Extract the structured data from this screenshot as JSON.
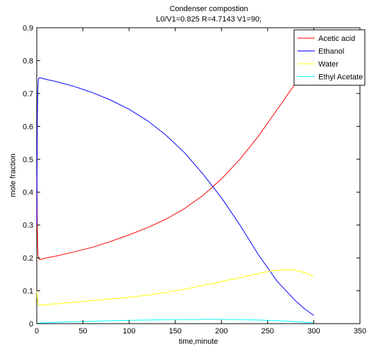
{
  "chart_data": {
    "type": "line",
    "title": "Condenser compostion",
    "subtitle": "L0/V1=0.825 R=4.7143 V1=90;",
    "xlabel": "time,minute",
    "ylabel": "mole fraction",
    "xlim": [
      0,
      350
    ],
    "ylim": [
      0,
      0.9
    ],
    "xticks": [
      0,
      50,
      100,
      150,
      200,
      250,
      300,
      350
    ],
    "yticks": [
      0,
      0.1,
      0.2,
      0.3,
      0.4,
      0.5,
      0.6,
      0.7,
      0.8,
      0.9
    ],
    "grid": false,
    "legend_position": "top-right",
    "series": [
      {
        "name": "Acetic acid",
        "color": "#ff0000",
        "x": [
          0,
          0.3,
          0.6,
          1,
          1.5,
          2,
          3,
          5,
          10,
          20,
          40,
          60,
          80,
          100,
          120,
          140,
          160,
          180,
          200,
          220,
          240,
          260,
          280,
          290,
          300
        ],
        "y": [
          0.45,
          0.4,
          0.3,
          0.23,
          0.205,
          0.198,
          0.195,
          0.196,
          0.2,
          0.205,
          0.218,
          0.232,
          0.25,
          0.27,
          0.292,
          0.318,
          0.35,
          0.39,
          0.44,
          0.5,
          0.57,
          0.65,
          0.73,
          0.77,
          0.8
        ]
      },
      {
        "name": "Ethanol",
        "color": "#0000ff",
        "x": [
          0,
          0.3,
          0.6,
          1,
          1.5,
          2,
          3,
          5,
          10,
          20,
          40,
          60,
          80,
          100,
          120,
          140,
          160,
          180,
          200,
          220,
          240,
          260,
          280,
          290,
          300
        ],
        "y": [
          0.3,
          0.45,
          0.62,
          0.7,
          0.735,
          0.745,
          0.748,
          0.747,
          0.743,
          0.737,
          0.722,
          0.703,
          0.68,
          0.652,
          0.617,
          0.573,
          0.52,
          0.455,
          0.383,
          0.3,
          0.21,
          0.13,
          0.07,
          0.045,
          0.025
        ]
      },
      {
        "name": "Water",
        "color": "#ffff00",
        "x": [
          0,
          0.5,
          1,
          2,
          3,
          5,
          10,
          20,
          40,
          60,
          80,
          100,
          120,
          140,
          160,
          180,
          200,
          220,
          240,
          250,
          260,
          270,
          280,
          290,
          300
        ],
        "y": [
          0.1,
          0.08,
          0.065,
          0.058,
          0.057,
          0.057,
          0.058,
          0.06,
          0.065,
          0.07,
          0.075,
          0.08,
          0.087,
          0.095,
          0.105,
          0.116,
          0.128,
          0.14,
          0.152,
          0.158,
          0.162,
          0.164,
          0.163,
          0.155,
          0.143
        ]
      },
      {
        "name": "Ethyl Acetate",
        "color": "#00ffff",
        "x": [
          0,
          1,
          3,
          10,
          20,
          40,
          60,
          80,
          100,
          120,
          140,
          160,
          180,
          200,
          220,
          240,
          260,
          280,
          290,
          300
        ],
        "y": [
          0.0,
          0.001,
          0.002,
          0.003,
          0.004,
          0.006,
          0.007,
          0.009,
          0.01,
          0.011,
          0.012,
          0.0125,
          0.013,
          0.013,
          0.0125,
          0.011,
          0.009,
          0.006,
          0.004,
          0.002
        ]
      }
    ]
  }
}
